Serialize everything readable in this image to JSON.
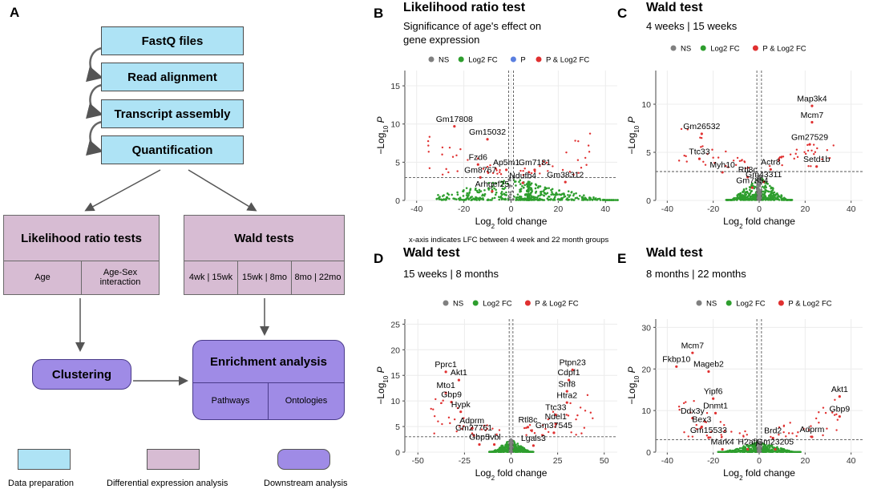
{
  "panel_a": {
    "letter": "A",
    "flow_steps": [
      "FastQ files",
      "Read alignment",
      "Transcript assembly",
      "Quantification"
    ],
    "lrt": {
      "title": "Likelihood ratio tests",
      "cells": [
        "Age",
        "Age-Sex interaction"
      ]
    },
    "wald": {
      "title": "Wald tests",
      "cells": [
        "4wk | 15wk",
        "15wk | 8mo",
        "8mo | 22mo"
      ]
    },
    "clustering": "Clustering",
    "enrichment": {
      "title": "Enrichment analysis",
      "cells": [
        "Pathways",
        "Ontologies"
      ]
    },
    "legend": [
      {
        "label": "Data preparation",
        "color": "#aee3f5"
      },
      {
        "label": "Differential expression analysis",
        "color": "#d7bcd3"
      },
      {
        "label": "Downstream analysis",
        "color": "#9f8be6"
      }
    ]
  },
  "colors": {
    "ns": "#808080",
    "log2fc": "#2e9e2e",
    "p": "#5a7fe0",
    "p_log2fc": "#e03030"
  },
  "chart_data": [
    {
      "type": "scatter",
      "letter": "B",
      "title": "Likelihood ratio test",
      "subtitle": "Significance of age's effect on gene expression",
      "xlabel": "Log2 fold change",
      "ylabel": "-Log10 P",
      "xlim": [
        -45,
        45
      ],
      "ylim": [
        0,
        17
      ],
      "xticks": [
        -40,
        -20,
        0,
        20,
        40
      ],
      "yticks": [
        0,
        5,
        10,
        15
      ],
      "vlines": [
        -1,
        1
      ],
      "hline": 3,
      "legend": [
        "NS",
        "Log2 FC",
        "P",
        "P & Log2 FC"
      ],
      "caption": "x-axis indicates LFC between 4 week and 22 month groups",
      "cloud_xspan": [
        -25,
        40
      ],
      "cloud_ymax": 3,
      "labels": [
        {
          "text": "Gm17808",
          "x": -24,
          "y": 10.3
        },
        {
          "text": "Gm15032",
          "x": -10,
          "y": 8.6
        },
        {
          "text": "Fzd6",
          "x": -14,
          "y": 5.3
        },
        {
          "text": "Ap5m1",
          "x": -2,
          "y": 4.6
        },
        {
          "text": "Gm7181",
          "x": 10,
          "y": 4.6
        },
        {
          "text": "Gm8767",
          "x": -13,
          "y": 3.6
        },
        {
          "text": "Ndufb4",
          "x": 5,
          "y": 2.9
        },
        {
          "text": "Gm38312",
          "x": 23,
          "y": 3.0
        },
        {
          "text": "Arhgef25",
          "x": -8,
          "y": 1.8
        }
      ]
    },
    {
      "type": "scatter",
      "letter": "C",
      "title": "Wald test",
      "subtitle": "4 weeks | 15 weeks",
      "xlabel": "Log2 fold change",
      "ylabel": "-Log10 P",
      "xlim": [
        -45,
        45
      ],
      "ylim": [
        0,
        13.5
      ],
      "xticks": [
        -40,
        -20,
        0,
        20,
        40
      ],
      "yticks": [
        0,
        5,
        10
      ],
      "vlines": [
        -1,
        1
      ],
      "hline": 3,
      "legend": [
        "NS",
        "Log2 FC",
        "P & Log2 FC"
      ],
      "cloud_xspan": [
        -12,
        12
      ],
      "cloud_ymax": 2.5,
      "labels": [
        {
          "text": "Map3k4",
          "x": 23,
          "y": 10.3
        },
        {
          "text": "Mcm7",
          "x": 23,
          "y": 8.6
        },
        {
          "text": "Gm26532",
          "x": -25,
          "y": 7.4
        },
        {
          "text": "Gm27529",
          "x": 22,
          "y": 6.3
        },
        {
          "text": "Ttc33",
          "x": -26,
          "y": 4.8
        },
        {
          "text": "Actr8",
          "x": 5,
          "y": 3.7
        },
        {
          "text": "Setd1b",
          "x": 25,
          "y": 4.0
        },
        {
          "text": "Myh10",
          "x": -16,
          "y": 3.4
        },
        {
          "text": "Rtl8c",
          "x": -5,
          "y": 2.9
        },
        {
          "text": "Gm43311",
          "x": 2,
          "y": 2.4
        },
        {
          "text": "Gm7854",
          "x": -3,
          "y": 1.8
        }
      ]
    },
    {
      "type": "scatter",
      "letter": "D",
      "title": "Wald test",
      "subtitle": "15 weeks | 8 months",
      "xlabel": "Log2 fold change",
      "ylabel": "-Log10 P",
      "xlim": [
        -57,
        57
      ],
      "ylim": [
        0,
        26
      ],
      "xticks": [
        -50,
        -25,
        0,
        25,
        50
      ],
      "yticks": [
        0,
        5,
        10,
        15,
        20,
        25
      ],
      "vlines": [
        -1,
        1
      ],
      "hline": 3,
      "legend": [
        "NS",
        "Log2 FC",
        "P & Log2 FC"
      ],
      "cloud_xspan": [
        -10,
        10
      ],
      "cloud_ymax": 2.5,
      "labels": [
        {
          "text": "Ptpn23",
          "x": 33,
          "y": 17
        },
        {
          "text": "Pprc1",
          "x": -35,
          "y": 16.6
        },
        {
          "text": "Akt1",
          "x": -28,
          "y": 15.0
        },
        {
          "text": "Cdpf1",
          "x": 31,
          "y": 15.0
        },
        {
          "text": "Snf8",
          "x": 30,
          "y": 12.8
        },
        {
          "text": "Mto1",
          "x": -35,
          "y": 12.5
        },
        {
          "text": "Gbp9",
          "x": -32,
          "y": 10.7
        },
        {
          "text": "Htra2",
          "x": 30,
          "y": 10.6
        },
        {
          "text": "Hypk",
          "x": -27,
          "y": 8.8
        },
        {
          "text": "Ttc33",
          "x": 24,
          "y": 8.2
        },
        {
          "text": "Adprm",
          "x": -21,
          "y": 5.6
        },
        {
          "text": "Ndel1",
          "x": 24,
          "y": 6.4
        },
        {
          "text": "Rtl8c",
          "x": 9,
          "y": 5.8
        },
        {
          "text": "Gm37545",
          "x": 23,
          "y": 4.7
        },
        {
          "text": "Gm27761",
          "x": -20,
          "y": 4.2
        },
        {
          "text": "Gbp5",
          "x": -17,
          "y": 2.4
        },
        {
          "text": "Ivbl",
          "x": -9,
          "y": 2.4
        },
        {
          "text": "Lgals3",
          "x": 12,
          "y": 2.2
        }
      ]
    },
    {
      "type": "scatter",
      "letter": "E",
      "title": "Wald test",
      "subtitle": "8 months | 22 months",
      "xlabel": "Log2 fold change",
      "ylabel": "-Log10 P",
      "xlim": [
        -45,
        45
      ],
      "ylim": [
        0,
        32
      ],
      "xticks": [
        -40,
        -20,
        0,
        20,
        40
      ],
      "yticks": [
        0,
        10,
        20,
        30
      ],
      "vlines": [
        -1,
        1
      ],
      "hline": 3,
      "legend": [
        "NS",
        "Log2 FC",
        "P & Log2 FC"
      ],
      "cloud_xspan": [
        -15,
        15
      ],
      "cloud_ymax": 2.5,
      "labels": [
        {
          "text": "Mcm7",
          "x": -29,
          "y": 25.0
        },
        {
          "text": "Fkbp10",
          "x": -36,
          "y": 21.7
        },
        {
          "text": "Mageb2",
          "x": -22,
          "y": 20.5
        },
        {
          "text": "Akt1",
          "x": 35,
          "y": 14.5
        },
        {
          "text": "Yipf6",
          "x": -20,
          "y": 14.0
        },
        {
          "text": "Dnmt1",
          "x": -19,
          "y": 10.5
        },
        {
          "text": "Ddx3y",
          "x": -29,
          "y": 9.3
        },
        {
          "text": "Gbp9",
          "x": 35,
          "y": 9.7
        },
        {
          "text": "Bex3",
          "x": -25,
          "y": 7.2
        },
        {
          "text": "Adprm",
          "x": 23,
          "y": 4.8
        },
        {
          "text": "Gm15533",
          "x": -22,
          "y": 4.6
        },
        {
          "text": "Brd2",
          "x": 6,
          "y": 4.5
        },
        {
          "text": "Mark4",
          "x": -16,
          "y": 1.8
        },
        {
          "text": "H2afj",
          "x": -5,
          "y": 1.8
        },
        {
          "text": "Gm23205",
          "x": 7,
          "y": 1.8
        }
      ]
    }
  ]
}
